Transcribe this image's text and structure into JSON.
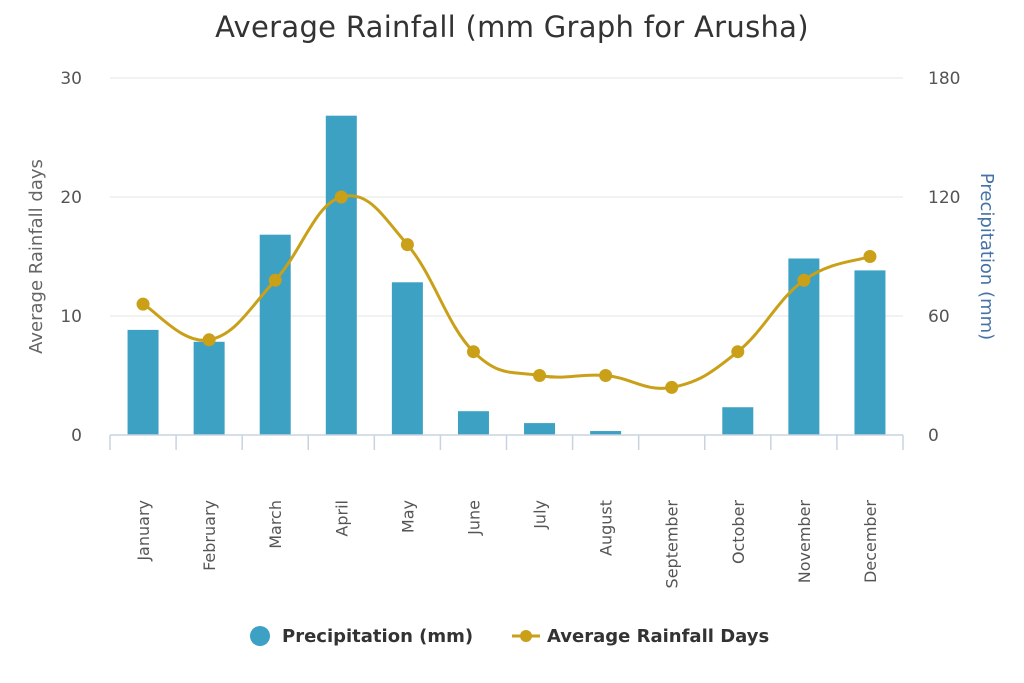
{
  "chart_data": {
    "type": "bar",
    "title": "Average Rainfall (mm Graph for Arusha)",
    "categories": [
      "January",
      "February",
      "March",
      "April",
      "May",
      "June",
      "July",
      "August",
      "September",
      "October",
      "November",
      "December"
    ],
    "series": [
      {
        "name": "Precipitation (mm)",
        "type": "bar",
        "axis": "right",
        "color": "#3ca1c2",
        "values": [
          53,
          47,
          101,
          161,
          77,
          12,
          6,
          2,
          0,
          14,
          89,
          83
        ]
      },
      {
        "name": "Average Rainfall Days",
        "type": "spline",
        "axis": "left",
        "color": "#c9a018",
        "values": [
          11,
          8,
          13,
          20,
          16,
          7,
          5,
          5,
          4,
          7,
          13,
          15
        ]
      }
    ],
    "left_axis": {
      "title": "Average Rainfall days",
      "min": 0,
      "max": 30,
      "ticks": [
        "0",
        "10",
        "20",
        "30"
      ]
    },
    "right_axis": {
      "title": "Precipitation (mm)",
      "min": 0,
      "max": 180,
      "ticks": [
        "0",
        "60",
        "120",
        "180"
      ]
    },
    "grid": true,
    "legend_position": "bottom-center"
  }
}
